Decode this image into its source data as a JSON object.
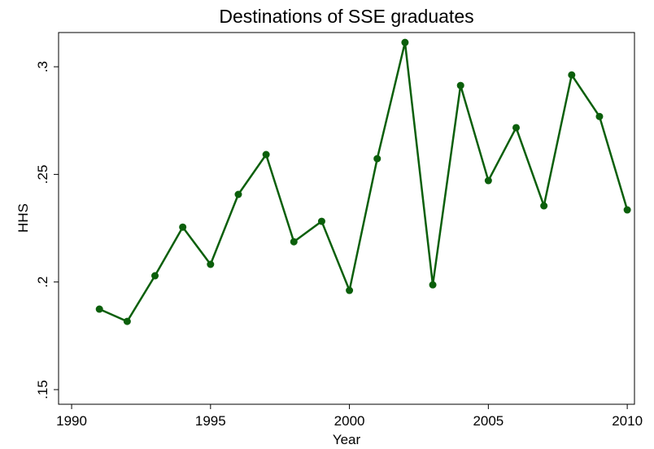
{
  "chart_data": {
    "type": "line",
    "title": "Destinations of SSE graduates",
    "x_label": "Year",
    "y_label": "HHS",
    "x": [
      1991,
      1992,
      1993,
      1994,
      1995,
      1996,
      1997,
      1998,
      1999,
      2000,
      2001,
      2002,
      2003,
      2004,
      2005,
      2006,
      2007,
      2008,
      2009,
      2010
    ],
    "series": [
      {
        "name": "HHS",
        "color": "#0b5f0b",
        "values": [
          0.1874,
          0.1817,
          0.2029,
          0.2255,
          0.2082,
          0.2407,
          0.2592,
          0.2187,
          0.2282,
          0.1961,
          0.2573,
          0.3113,
          0.1987,
          0.2913,
          0.2471,
          0.2717,
          0.2354,
          0.2962,
          0.2769,
          0.2335
        ]
      }
    ],
    "xlim": [
      1989.53,
      2010.26
    ],
    "xticks": [
      1990,
      1995,
      2000,
      2005,
      2010
    ],
    "ylim": [
      0.1432,
      0.3159
    ],
    "yticks": [
      {
        "value": 0.15,
        "label": ".15"
      },
      {
        "value": 0.2,
        "label": ".2"
      },
      {
        "value": 0.25,
        "label": ".25"
      },
      {
        "value": 0.3,
        "label": ".3"
      }
    ],
    "grid": false
  }
}
